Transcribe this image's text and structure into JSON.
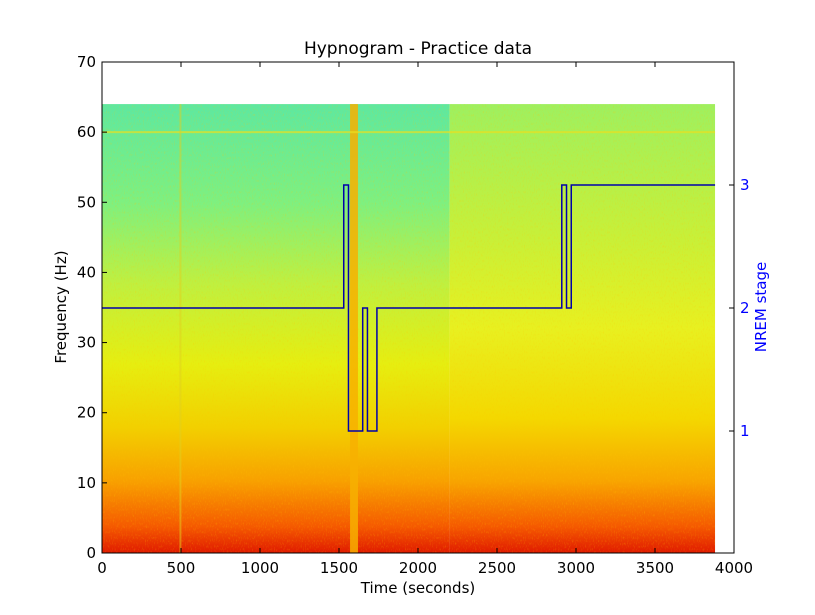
{
  "chart_data": {
    "type": "heatmap",
    "title": "Hypnogram - Practice data",
    "xlabel": "Time (seconds)",
    "ylabel": "Frequency (Hz)",
    "y2label": "NREM stage",
    "xlim": [
      0,
      4000
    ],
    "ylim": [
      0,
      70
    ],
    "x_ticks": [
      0,
      500,
      1000,
      1500,
      2000,
      2500,
      3000,
      3500,
      4000
    ],
    "y_ticks": [
      0,
      10,
      20,
      30,
      40,
      50,
      60,
      70
    ],
    "y2_ticks": [
      1,
      2,
      3
    ],
    "spectrogram": {
      "time_range": [
        0,
        3880
      ],
      "freq_range": [
        0,
        64
      ],
      "colormap": "jet"
    },
    "hypnogram": {
      "color": "#0000aa",
      "steps": [
        {
          "t": 0,
          "stage": 2
        },
        {
          "t": 1530,
          "stage": 3
        },
        {
          "t": 1560,
          "stage": 1
        },
        {
          "t": 1650,
          "stage": 2
        },
        {
          "t": 1680,
          "stage": 1
        },
        {
          "t": 1740,
          "stage": 2
        },
        {
          "t": 2910,
          "stage": 3
        },
        {
          "t": 2940,
          "stage": 2
        },
        {
          "t": 2970,
          "stage": 3
        }
      ],
      "t_end": 3880
    },
    "stage_axis_color": "#0000ff"
  }
}
